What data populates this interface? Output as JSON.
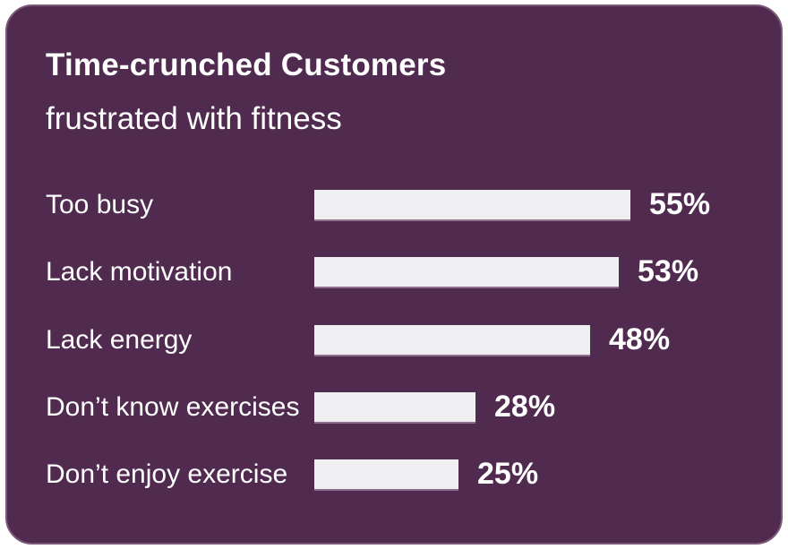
{
  "card": {
    "title": "Time-crunched Customers",
    "subtitle": "frustrated with fitness",
    "colors": {
      "background": "#512B4F",
      "border": "#7B587A",
      "bar_fill": "#EFEEF0",
      "text": "#FFFFFF"
    }
  },
  "chart_data": {
    "type": "bar",
    "orientation": "horizontal",
    "title": "Time-crunched Customers",
    "subtitle": "frustrated with fitness",
    "categories": [
      "Too busy",
      "Lack motivation",
      "Lack energy",
      "Don’t know exercises",
      "Don’t enjoy exercise"
    ],
    "values": [
      55,
      53,
      48,
      28,
      25
    ],
    "value_labels": [
      "55%",
      "53%",
      "48%",
      "28%",
      "25%"
    ],
    "unit": "%",
    "xlim": [
      0,
      100
    ],
    "grid": false,
    "legend": false,
    "value_label_position": "right-of-bar"
  }
}
